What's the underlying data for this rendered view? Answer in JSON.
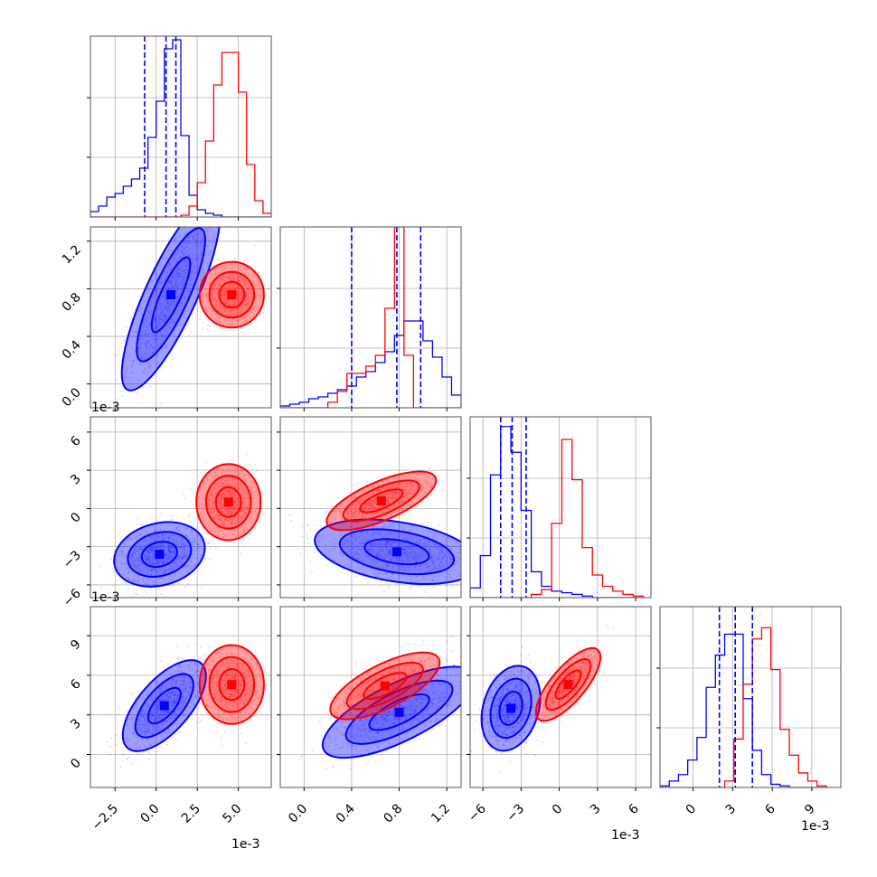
{
  "chart_data": {
    "type": "corner",
    "colors": {
      "blue": "#0000ff",
      "red": "#ff0000",
      "grid": "#b0b0b0"
    },
    "dims": [
      {
        "ticks": [
          -2.5,
          0.0,
          2.5,
          5.0
        ],
        "tick_labels": [
          "−2.5",
          "0.0",
          "2.5",
          "5.0"
        ],
        "xlim": [
          -4.0,
          7.0
        ],
        "offset": "1e-3"
      },
      {
        "ticks": [
          0.0,
          0.4,
          0.8,
          1.2
        ],
        "tick_labels": [
          "0.0",
          "0.4",
          "0.8",
          "1.2"
        ],
        "xlim": [
          -0.2,
          1.32
        ],
        "offset": "1e-3"
      },
      {
        "ticks": [
          -6,
          -3,
          0,
          3,
          6
        ],
        "tick_labels": [
          "−6",
          "−3",
          "0",
          "3",
          "6"
        ],
        "xlim": [
          -7.0,
          7.2
        ],
        "offset": "1e-3"
      },
      {
        "ticks": [
          0,
          3,
          6,
          9
        ],
        "tick_labels": [
          "0",
          "3",
          "6",
          "9"
        ],
        "xlim": [
          -2.5,
          11.2
        ],
        "offset": "1e-3"
      }
    ],
    "hist_max": [
      1.0,
      1.0,
      1.12,
      1.12
    ],
    "histograms": [
      {
        "blue": {
          "edges": [
            -4.0,
            -3.5,
            -3.0,
            -2.5,
            -2.0,
            -1.5,
            -1.0,
            -0.5,
            0.0,
            0.5,
            1.0,
            1.5,
            2.0,
            2.5,
            3.0,
            3.5,
            4.0,
            4.5,
            5.0,
            5.5,
            6.0,
            6.5,
            7.0
          ],
          "counts": [
            0.03,
            0.06,
            0.11,
            0.13,
            0.17,
            0.21,
            0.27,
            0.44,
            0.64,
            0.93,
            0.98,
            0.45,
            0.12,
            0.04,
            0.02,
            0.01,
            0,
            0,
            0,
            0,
            0,
            0
          ]
        },
        "red": {
          "edges": [
            -4.0,
            -3.5,
            -3.0,
            -2.5,
            -2.0,
            -1.5,
            -1.0,
            -0.5,
            0.0,
            0.5,
            1.0,
            1.5,
            2.0,
            2.5,
            3.0,
            3.5,
            4.0,
            4.5,
            5.0,
            5.5,
            6.0,
            6.5,
            7.0
          ],
          "counts": [
            0,
            0,
            0,
            0,
            0,
            0,
            0,
            0,
            0,
            0,
            0,
            0.01,
            0.06,
            0.19,
            0.42,
            0.73,
            0.91,
            0.91,
            0.69,
            0.29,
            0.09,
            0.02
          ]
        },
        "quantiles": [
          -0.7,
          0.6,
          1.2
        ]
      },
      {
        "blue": {
          "edges": [
            -0.2,
            -0.12,
            -0.04,
            0.04,
            0.12,
            0.2,
            0.28,
            0.36,
            0.44,
            0.52,
            0.6,
            0.68,
            0.76,
            0.84,
            0.92,
            1.0,
            1.08,
            1.16,
            1.24,
            1.32
          ],
          "counts": [
            0.01,
            0.02,
            0.03,
            0.05,
            0.06,
            0.08,
            0.1,
            0.12,
            0.17,
            0.2,
            0.25,
            0.31,
            0.4,
            0.48,
            0.48,
            0.37,
            0.28,
            0.17,
            0.07
          ]
        },
        "red": {
          "edges": [
            -0.2,
            -0.12,
            -0.04,
            0.04,
            0.12,
            0.2,
            0.28,
            0.36,
            0.44,
            0.52,
            0.6,
            0.68,
            0.76,
            0.84,
            0.92,
            1.0,
            1.08,
            1.16,
            1.24,
            1.32
          ],
          "counts": [
            0,
            0,
            0,
            0,
            0,
            0.03,
            0.09,
            0.19,
            0.19,
            0.23,
            0.29,
            0.55,
            1.0,
            0.29,
            0,
            0,
            0,
            0,
            0
          ]
        },
        "quantiles": [
          0.4,
          0.78,
          0.98
        ]
      },
      {
        "blue": {
          "edges": [
            -7.0,
            -6.2,
            -5.4,
            -4.6,
            -3.8,
            -3.0,
            -2.2,
            -1.4,
            -0.6,
            0.2,
            1.0,
            1.8,
            2.6,
            3.4,
            4.2,
            5.0,
            5.8,
            6.6
          ],
          "counts": [
            0.06,
            0.26,
            0.76,
            1.06,
            0.9,
            0.54,
            0.16,
            0.07,
            0.04,
            0.03,
            0.02,
            0.01,
            0,
            0,
            0,
            0,
            0
          ]
        },
        "red": {
          "edges": [
            -7.0,
            -6.2,
            -5.4,
            -4.6,
            -3.8,
            -3.0,
            -2.2,
            -1.4,
            -0.6,
            0.2,
            1.0,
            1.8,
            2.6,
            3.4,
            4.2,
            5.0,
            5.8,
            6.6
          ],
          "counts": [
            0,
            0,
            0,
            0,
            0,
            0,
            0.02,
            0.05,
            0.46,
            0.98,
            0.73,
            0.31,
            0.14,
            0.07,
            0.04,
            0.02,
            0.01
          ]
        },
        "quantiles": [
          -4.6,
          -3.7,
          -2.6
        ]
      },
      {
        "blue": {
          "edges": [
            -2.5,
            -1.8,
            -1.1,
            -0.4,
            0.3,
            1.0,
            1.7,
            2.4,
            3.1,
            3.8,
            4.5,
            5.2,
            5.9,
            6.6,
            7.3,
            8.0,
            8.7,
            9.4,
            10.1
          ],
          "counts": [
            0.01,
            0.04,
            0.08,
            0.17,
            0.31,
            0.62,
            0.82,
            0.95,
            0.95,
            0.55,
            0.23,
            0.08,
            0.02,
            0.01,
            0,
            0,
            0,
            0
          ]
        },
        "red": {
          "edges": [
            -2.5,
            -1.8,
            -1.1,
            -0.4,
            0.3,
            1.0,
            1.7,
            2.4,
            3.1,
            3.8,
            4.5,
            5.2,
            5.9,
            6.6,
            7.3,
            8.0,
            8.7,
            9.4,
            10.1
          ],
          "counts": [
            0,
            0,
            0,
            0,
            0,
            0,
            0,
            0.04,
            0.3,
            0.64,
            0.92,
            0.99,
            0.73,
            0.36,
            0.2,
            0.09,
            0.04,
            0.01
          ]
        },
        "quantiles": [
          2.0,
          3.2,
          4.5
        ]
      }
    ],
    "pairs": [
      {
        "row": 1,
        "col": 0,
        "blue": {
          "mean": [
            0.9,
            0.75
          ],
          "sd": [
            1.3,
            0.35
          ],
          "rho": 0.82
        },
        "red": {
          "mean": [
            4.6,
            0.75
          ],
          "sd": [
            0.85,
            0.12
          ],
          "rho": 0.0
        }
      },
      {
        "row": 2,
        "col": 0,
        "blue": {
          "mean": [
            0.2,
            -3.6
          ],
          "sd": [
            1.2,
            1.1
          ],
          "rho": 0.2
        },
        "red": {
          "mean": [
            4.4,
            0.5
          ],
          "sd": [
            0.85,
            1.3
          ],
          "rho": 0.0
        }
      },
      {
        "row": 2,
        "col": 1,
        "blue": {
          "mean": [
            0.78,
            -3.4
          ],
          "sd": [
            0.3,
            1.1
          ],
          "rho": -0.35
        },
        "red": {
          "mean": [
            0.65,
            0.6
          ],
          "sd": [
            0.2,
            1.0
          ],
          "rho": 0.7
        }
      },
      {
        "row": 3,
        "col": 0,
        "blue": {
          "mean": [
            0.5,
            3.7
          ],
          "sd": [
            1.1,
            1.5
          ],
          "rho": 0.65
        },
        "red": {
          "mean": [
            4.6,
            5.3
          ],
          "sd": [
            0.85,
            1.3
          ],
          "rho": 0.0
        }
      },
      {
        "row": 3,
        "col": 1,
        "blue": {
          "mean": [
            0.8,
            3.2
          ],
          "sd": [
            0.28,
            1.5
          ],
          "rho": 0.72
        },
        "red": {
          "mean": [
            0.68,
            5.2
          ],
          "sd": [
            0.2,
            1.1
          ],
          "rho": 0.7
        }
      },
      {
        "row": 3,
        "col": 2,
        "blue": {
          "mean": [
            -3.8,
            3.5
          ],
          "sd": [
            1.0,
            1.4
          ],
          "rho": 0.25
        },
        "red": {
          "mean": [
            0.7,
            5.3
          ],
          "sd": [
            1.1,
            1.2
          ],
          "rho": 0.75
        }
      }
    ],
    "contour_levels": [
      0.9,
      1.6,
      2.3
    ],
    "title": "",
    "xlabel": "",
    "ylabel": "",
    "grid": true
  }
}
